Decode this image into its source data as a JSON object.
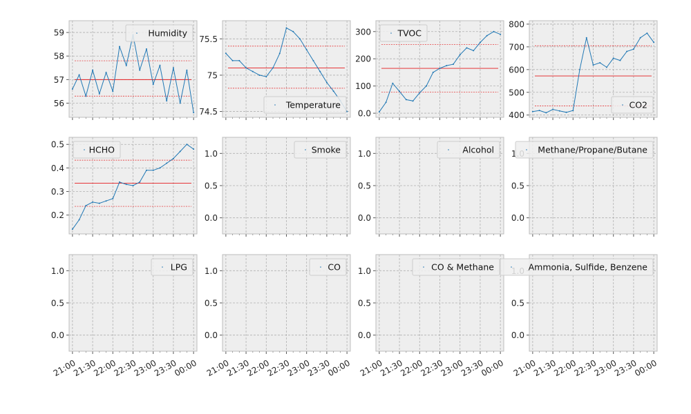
{
  "style": {
    "axes_bg": "#eeeeee",
    "grid_color": "#b0b0b0",
    "series_color": "#1f77b4",
    "band_color": "#e41a1c",
    "legend_bg": "#eeeeee",
    "legend_border": "#cccccc"
  },
  "chart_data": [
    {
      "type": "line",
      "legend": "Humidity",
      "legend_loc": "top-right",
      "ylim": [
        55.4,
        59.5
      ],
      "yticks": [
        56,
        57,
        58,
        59
      ],
      "mean": 57.0,
      "upper": 57.8,
      "lower": 56.3,
      "show_xticks": false,
      "x": [
        "21:00",
        "21:10",
        "21:20",
        "21:30",
        "21:40",
        "21:50",
        "22:00",
        "22:10",
        "22:20",
        "22:30",
        "22:40",
        "22:50",
        "23:00",
        "23:10",
        "23:20",
        "23:30",
        "23:40",
        "23:50",
        "24:00"
      ],
      "y": [
        56.6,
        57.2,
        56.3,
        57.4,
        56.4,
        57.3,
        56.5,
        58.4,
        57.6,
        58.9,
        57.4,
        58.3,
        56.8,
        57.6,
        56.1,
        57.5,
        56.0,
        57.4,
        55.6
      ]
    },
    {
      "type": "line",
      "legend": "Temperature",
      "legend_loc": "bottom-right",
      "ylim": [
        74.42,
        75.75
      ],
      "yticks": [
        74.5,
        75.0,
        75.5
      ],
      "mean": 75.1,
      "upper": 75.4,
      "lower": 74.82,
      "show_xticks": false,
      "x": [
        "21:00",
        "21:10",
        "21:20",
        "21:30",
        "21:40",
        "21:50",
        "22:00",
        "22:10",
        "22:20",
        "22:30",
        "22:40",
        "22:50",
        "23:00",
        "23:10",
        "23:20",
        "23:30",
        "23:40",
        "23:50",
        "24:00"
      ],
      "y": [
        75.3,
        75.2,
        75.2,
        75.1,
        75.05,
        75.0,
        74.98,
        75.1,
        75.3,
        75.65,
        75.6,
        75.5,
        75.35,
        75.2,
        75.05,
        74.9,
        74.78,
        74.65,
        74.5
      ]
    },
    {
      "type": "line",
      "legend": "TVOC",
      "legend_loc": "top-left",
      "ylim": [
        -15,
        340
      ],
      "yticks": [
        0,
        100,
        200,
        300
      ],
      "mean": 165,
      "upper": 252,
      "lower": 78,
      "show_xticks": false,
      "x": [
        "21:00",
        "21:10",
        "21:20",
        "21:30",
        "21:40",
        "21:50",
        "22:00",
        "22:10",
        "22:20",
        "22:30",
        "22:40",
        "22:50",
        "23:00",
        "23:10",
        "23:20",
        "23:30",
        "23:40",
        "23:50",
        "24:00"
      ],
      "y": [
        5,
        40,
        110,
        80,
        50,
        45,
        75,
        100,
        150,
        165,
        175,
        180,
        215,
        240,
        230,
        260,
        285,
        300,
        290
      ]
    },
    {
      "type": "line",
      "legend": "CO2",
      "legend_loc": "bottom-right",
      "ylim": [
        390,
        815
      ],
      "yticks": [
        400,
        500,
        600,
        700,
        800
      ],
      "mean": 572,
      "upper": 705,
      "lower": 440,
      "show_xticks": false,
      "x": [
        "21:00",
        "21:10",
        "21:20",
        "21:30",
        "21:40",
        "21:50",
        "22:00",
        "22:10",
        "22:20",
        "22:30",
        "22:40",
        "22:50",
        "23:00",
        "23:10",
        "23:20",
        "23:30",
        "23:40",
        "23:50",
        "24:00"
      ],
      "y": [
        415,
        420,
        410,
        425,
        418,
        412,
        420,
        600,
        740,
        620,
        630,
        610,
        650,
        640,
        680,
        690,
        740,
        760,
        720
      ]
    },
    {
      "type": "line",
      "legend": "HCHO",
      "legend_loc": "top-left",
      "ylim": [
        0.12,
        0.53
      ],
      "yticks": [
        0.2,
        0.3,
        0.4,
        0.5
      ],
      "mean": 0.335,
      "upper": 0.433,
      "lower": 0.237,
      "show_xticks": false,
      "x": [
        "21:00",
        "21:10",
        "21:20",
        "21:30",
        "21:40",
        "21:50",
        "22:00",
        "22:10",
        "22:20",
        "22:30",
        "22:40",
        "22:50",
        "23:00",
        "23:10",
        "23:20",
        "23:30",
        "23:40",
        "23:50",
        "24:00"
      ],
      "y": [
        0.14,
        0.18,
        0.24,
        0.255,
        0.25,
        0.26,
        0.27,
        0.34,
        0.33,
        0.325,
        0.34,
        0.39,
        0.39,
        0.4,
        0.42,
        0.44,
        0.47,
        0.5,
        0.48
      ]
    },
    {
      "type": "line",
      "legend": "Smoke",
      "legend_loc": "top-right",
      "ylim": [
        -0.25,
        1.25
      ],
      "yticks": [
        0.0,
        0.5,
        1.0
      ],
      "show_xticks": false,
      "x": [],
      "y": []
    },
    {
      "type": "line",
      "legend": "Alcohol",
      "legend_loc": "top-right",
      "ylim": [
        -0.25,
        1.25
      ],
      "yticks": [
        0.0,
        0.5,
        1.0
      ],
      "show_xticks": false,
      "x": [],
      "y": []
    },
    {
      "type": "line",
      "legend": "Methane/Propane/Butane",
      "legend_loc": "top-right",
      "ylim": [
        -0.25,
        1.25
      ],
      "yticks": [
        0.0,
        0.5,
        1.0
      ],
      "show_xticks": false,
      "x": [],
      "y": []
    },
    {
      "type": "line",
      "legend": "LPG",
      "legend_loc": "top-right",
      "ylim": [
        -0.25,
        1.25
      ],
      "yticks": [
        0.0,
        0.5,
        1.0
      ],
      "show_xticks": true,
      "x": [],
      "y": []
    },
    {
      "type": "line",
      "legend": "CO",
      "legend_loc": "top-right",
      "ylim": [
        -0.25,
        1.25
      ],
      "yticks": [
        0.0,
        0.5,
        1.0
      ],
      "show_xticks": true,
      "x": [],
      "y": []
    },
    {
      "type": "line",
      "legend": "CO & Methane",
      "legend_loc": "top-right",
      "ylim": [
        -0.25,
        1.25
      ],
      "yticks": [
        0.0,
        0.5,
        1.0
      ],
      "show_xticks": true,
      "x": [],
      "y": []
    },
    {
      "type": "line",
      "legend": "Ammonia, Sulfide, Benzene",
      "legend_loc": "top-right",
      "ylim": [
        -0.25,
        1.25
      ],
      "yticks": [
        0.0,
        0.5,
        1.0
      ],
      "show_xticks": true,
      "x": [],
      "y": []
    }
  ],
  "xaxis": {
    "xlim": [
      "20:55",
      "24:05"
    ],
    "ticks": [
      {
        "t": "21:00",
        "label": "21:00"
      },
      {
        "t": "21:30",
        "label": "21:30"
      },
      {
        "t": "22:00",
        "label": "22:00"
      },
      {
        "t": "22:30",
        "label": "22:30"
      },
      {
        "t": "23:00",
        "label": "23:00"
      },
      {
        "t": "23:30",
        "label": "23:30"
      },
      {
        "t": "24:00",
        "label": "00:00"
      }
    ]
  }
}
